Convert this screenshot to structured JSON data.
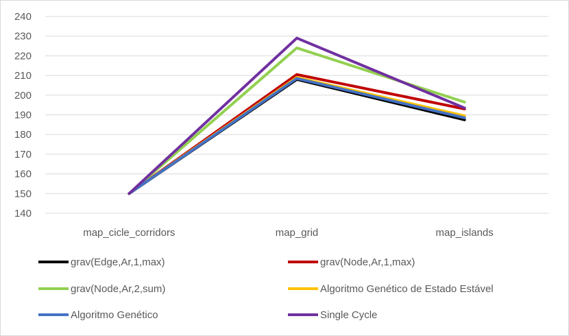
{
  "chart_data": {
    "type": "line",
    "title": "",
    "xlabel": "",
    "ylabel": "",
    "categories": [
      "map_cicle_corridors",
      "map_grid",
      "map_islands"
    ],
    "ylim": [
      140,
      240
    ],
    "yticks": [
      140,
      150,
      160,
      170,
      180,
      190,
      200,
      210,
      220,
      230,
      240
    ],
    "grid": true,
    "legend_position": "bottom",
    "series": [
      {
        "name": "grav(Edge,Ar,1,max)",
        "color": "#000000",
        "values": [
          150,
          208,
          187.5
        ]
      },
      {
        "name": "grav(Node,Ar,1,max)",
        "color": "#c00000",
        "values": [
          150,
          210.5,
          193
        ]
      },
      {
        "name": "grav(Node,Ar,2,sum)",
        "color": "#92d050",
        "values": [
          150,
          224,
          196.5
        ]
      },
      {
        "name": "Algoritmo Genético de Estado Estável",
        "color": "#ffc000",
        "values": [
          150,
          209,
          189.5
        ]
      },
      {
        "name": "Algoritmo Genético",
        "color": "#4472c4",
        "values": [
          150,
          208.5,
          188.5
        ]
      },
      {
        "name": "Single Cycle",
        "color": "#7030a0",
        "values": [
          150,
          229,
          193.5
        ]
      }
    ]
  }
}
